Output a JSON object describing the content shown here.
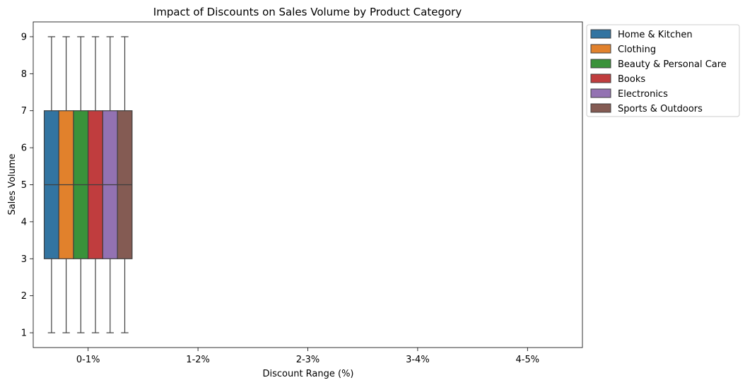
{
  "chart_data": {
    "type": "box",
    "title": "Impact of Discounts on Sales Volume by Product Category",
    "xlabel": "Discount Range (%)",
    "ylabel": "Sales Volume",
    "categories": [
      "0-1%",
      "1-2%",
      "2-3%",
      "3-4%",
      "4-5%"
    ],
    "ylim": [
      0.6,
      9.4
    ],
    "yticks": [
      "1",
      "2",
      "3",
      "4",
      "5",
      "6",
      "7",
      "8",
      "9"
    ],
    "grid": false,
    "legend_position": "outside-upper-right",
    "series": [
      {
        "name": "Home & Kitchen",
        "color": "#3274a1",
        "boxes": [
          {
            "category": "0-1%",
            "min": 1,
            "q1": 3,
            "median": 5,
            "q3": 7,
            "max": 9
          }
        ]
      },
      {
        "name": "Clothing",
        "color": "#e1812c",
        "boxes": [
          {
            "category": "0-1%",
            "min": 1,
            "q1": 3,
            "median": 5,
            "q3": 7,
            "max": 9
          }
        ]
      },
      {
        "name": "Beauty & Personal Care",
        "color": "#3a923a",
        "boxes": [
          {
            "category": "0-1%",
            "min": 1,
            "q1": 3,
            "median": 5,
            "q3": 7,
            "max": 9
          }
        ]
      },
      {
        "name": "Books",
        "color": "#c03d3e",
        "boxes": [
          {
            "category": "0-1%",
            "min": 1,
            "q1": 3,
            "median": 5,
            "q3": 7,
            "max": 9
          }
        ]
      },
      {
        "name": "Electronics",
        "color": "#9372b2",
        "boxes": [
          {
            "category": "0-1%",
            "min": 1,
            "q1": 3,
            "median": 5,
            "q3": 7,
            "max": 9
          }
        ]
      },
      {
        "name": "Sports & Outdoors",
        "color": "#845b53",
        "boxes": [
          {
            "category": "0-1%",
            "min": 1,
            "q1": 3,
            "median": 5,
            "q3": 7,
            "max": 9
          }
        ]
      }
    ]
  }
}
